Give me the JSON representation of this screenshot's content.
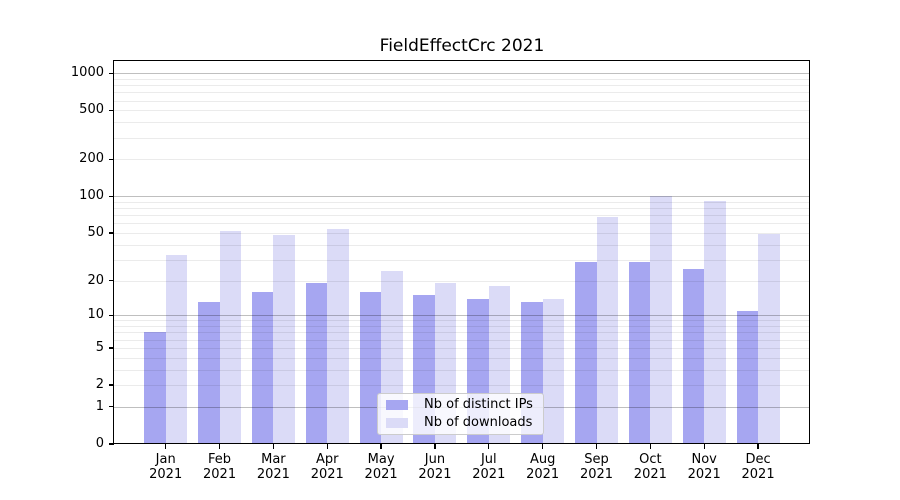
{
  "figure_title": "FieldEffectCrc 2021",
  "chart_data": {
    "type": "bar",
    "title": "FieldEffectCrc 2021",
    "subtitle": "",
    "xlabel": "",
    "ylabel": "",
    "categories": [
      "Jan 2021",
      "Feb 2021",
      "Mar 2021",
      "Apr 2021",
      "May 2021",
      "Jun 2021",
      "Jul 2021",
      "Aug 2021",
      "Sep 2021",
      "Oct 2021",
      "Nov 2021",
      "Dec 2021"
    ],
    "series": [
      {
        "name": "Nb of distinct IPs",
        "color": "#a6a6f1",
        "values": [
          7,
          13,
          16,
          19,
          16,
          15,
          14,
          13,
          29,
          29,
          25,
          11
        ]
      },
      {
        "name": "Nb of downloads",
        "color": "#dbdbf7",
        "values": [
          33,
          52,
          48,
          54,
          24,
          19,
          18,
          14,
          68,
          101,
          92,
          49
        ]
      }
    ],
    "yscale": "log1p",
    "ylim": [
      0,
      1200
    ],
    "yticks": [
      0,
      1,
      2,
      5,
      10,
      20,
      50,
      100,
      200,
      500,
      1000
    ],
    "yticks_minor": [
      3,
      4,
      6,
      7,
      8,
      9,
      30,
      40,
      60,
      70,
      80,
      90,
      300,
      400,
      600,
      700,
      800,
      900
    ],
    "major_grid_values": [
      1,
      10,
      100,
      1000
    ],
    "grid": true,
    "legend_position": "lower center"
  }
}
